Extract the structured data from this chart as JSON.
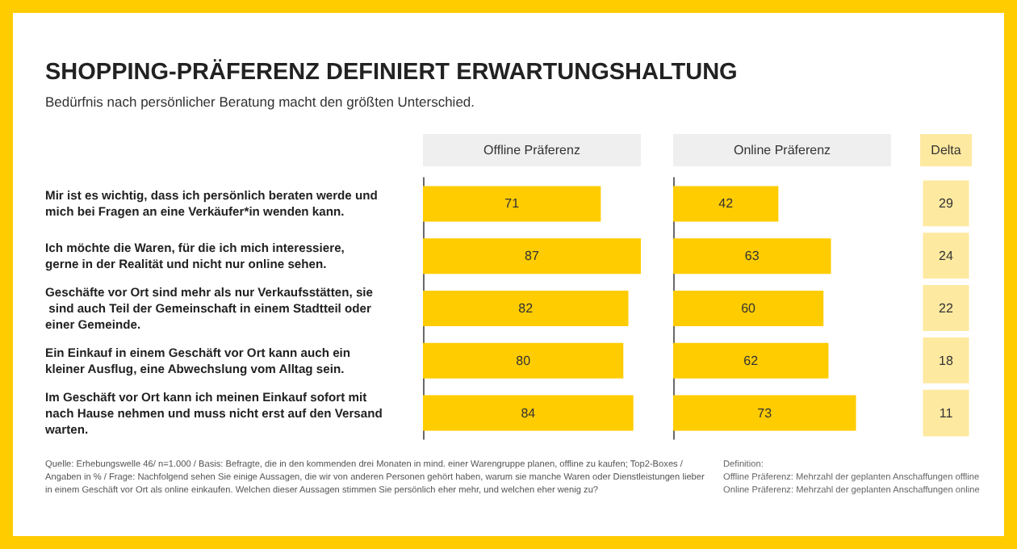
{
  "chart_data": [
    {
      "type": "bar",
      "orientation": "horizontal",
      "title": "SHOPPING-PRÄFERENZ DEFINIERT ERWARTUNGSHALTUNG",
      "subtitle": "Bedürfnis nach persönlicher Beratung macht den größten Unterschied.",
      "xlabel": "Offline Präferenz",
      "categories": [
        "Mir ist es wichtig, dass ich persönlich beraten werde und mich bei Fragen an eine Verkäufer*in wenden kann.",
        "Ich möchte die Waren, für die ich mich interessiere, gerne in der Realität und nicht nur online sehen.",
        "Geschäfte vor Ort sind mehr als nur Verkaufsstätten, sie sind auch Teil der Gemeinschaft in einem Stadtteil oder einer Gemeinde.",
        "Ein Einkauf in einem Geschäft vor Ort kann auch ein kleiner Ausflug, eine Abwechslung vom Alltag sein.",
        "Im Geschäft vor Ort kann ich meinen Einkauf sofort mit nach Hause nehmen und muss nicht erst auf den Versand warten."
      ],
      "values": [
        71,
        87,
        82,
        80,
        84
      ],
      "color": "#ffcc00",
      "data_labels": true,
      "tick_labels": "y",
      "annotations": [
        "Quelle: Erhebungswelle 46/ n=1.000 / Basis: Befragte, die in den kommenden drei Monaten in mind. einer Warengruppe planen, offline zu kaufen; Top2-Boxes / Angaben in % / Frage: Nachfolgend sehen Sie einige Aussagen, die wir von anderen Personen gehört haben, warum sie manche Waren oder Dienstleistungen lieber in einem Geschäft vor Ort als online einkaufen. Welchen dieser Aussagen stimmen Sie persönlich eher mehr, und welchen eher wenig zu?",
        "Definition:",
        "Offline Präferenz: Mehrzahl der geplanten Anschaffungen offline",
        "Online Präferenz: Mehrzahl der geplanten Anschaffungen online"
      ]
    },
    {
      "type": "bar",
      "orientation": "horizontal",
      "xlabel": "Online Präferenz",
      "categories": [
        null,
        null,
        null,
        null,
        null
      ],
      "values": [
        42,
        63,
        60,
        62,
        73
      ],
      "color": "#ffcc00",
      "data_labels": true,
      "tick_labels": false
    },
    {
      "type": "other",
      "xlabel": "Delta",
      "categories": [
        null,
        null,
        null,
        null,
        null
      ],
      "values": [
        29,
        24,
        22,
        18,
        11
      ],
      "color": "#fde9a0",
      "data_labels": true
    }
  ]
}
